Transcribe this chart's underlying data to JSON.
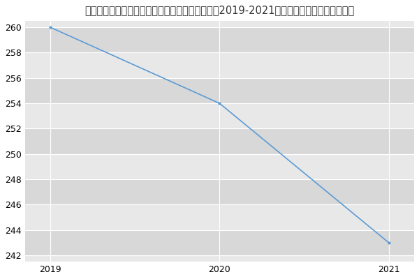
{
  "title": "昆明理工大学国土资源工程学院安全技术及工程（2019-2021历年复试）研究生录取分数线",
  "x": [
    2019,
    2020,
    2021
  ],
  "y": [
    260,
    254,
    243
  ],
  "xlim": [
    2018.85,
    2021.15
  ],
  "ylim": [
    241.5,
    260.5
  ],
  "yticks": [
    242,
    244,
    246,
    248,
    250,
    252,
    254,
    256,
    258,
    260
  ],
  "xticks": [
    2019,
    2020,
    2021
  ],
  "line_color": "#5b9bd5",
  "marker": "o",
  "marker_size": 2,
  "line_width": 1.2,
  "bg_color": "#ffffff",
  "plot_bg_color": "#e8e8e8",
  "grid_color": "#ffffff",
  "title_fontsize": 10.5,
  "tick_fontsize": 9,
  "band_colors": [
    "#d8d8d8",
    "#e8e8e8"
  ]
}
